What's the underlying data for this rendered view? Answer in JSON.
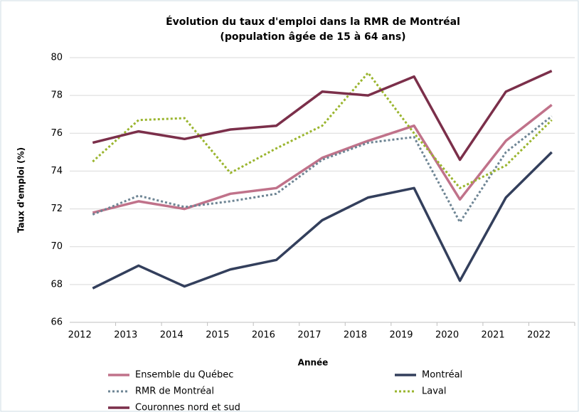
{
  "chart_data": {
    "type": "line",
    "title": "Évolution du taux d'emploi dans la RMR de Montréal",
    "subtitle": "(population âgée de 15 à 64 ans)",
    "x_label": "Année",
    "y_label": "Taux d'emploi (%)",
    "categories": [
      "2012",
      "2013",
      "2014",
      "2015",
      "2016",
      "2017",
      "2018",
      "2019",
      "2020",
      "2021",
      "2022"
    ],
    "series": [
      {
        "name": "Ensemble du Québec",
        "color": "#c0728a",
        "style": "solid",
        "values": [
          71.8,
          72.4,
          72.0,
          72.8,
          73.1,
          74.7,
          75.6,
          76.4,
          72.5,
          75.6,
          77.5
        ]
      },
      {
        "name": "Montréal",
        "color": "#333f5c",
        "style": "solid",
        "values": [
          67.8,
          69.0,
          67.9,
          68.8,
          69.3,
          71.4,
          72.6,
          73.1,
          68.2,
          72.6,
          75.0
        ]
      },
      {
        "name": "RMR de Montréal",
        "color": "#6e8594",
        "style": "dotted",
        "values": [
          71.7,
          72.7,
          72.1,
          72.4,
          72.8,
          74.6,
          75.5,
          75.8,
          71.3,
          75.0,
          76.9
        ]
      },
      {
        "name": "Laval",
        "color": "#9ab52e",
        "style": "dotted",
        "values": [
          74.5,
          76.7,
          76.8,
          73.9,
          75.2,
          76.4,
          79.2,
          76.0,
          73.1,
          74.3,
          76.7
        ]
      },
      {
        "name": "Couronnes nord et sud",
        "color": "#7b2f4a",
        "style": "solid",
        "values": [
          75.5,
          76.1,
          75.7,
          76.2,
          76.4,
          78.2,
          78.0,
          79.0,
          74.6,
          78.2,
          79.3
        ]
      }
    ],
    "ylim": [
      66,
      80
    ],
    "yticks": [
      66,
      68,
      70,
      72,
      74,
      76,
      78,
      80
    ],
    "grid": true
  }
}
